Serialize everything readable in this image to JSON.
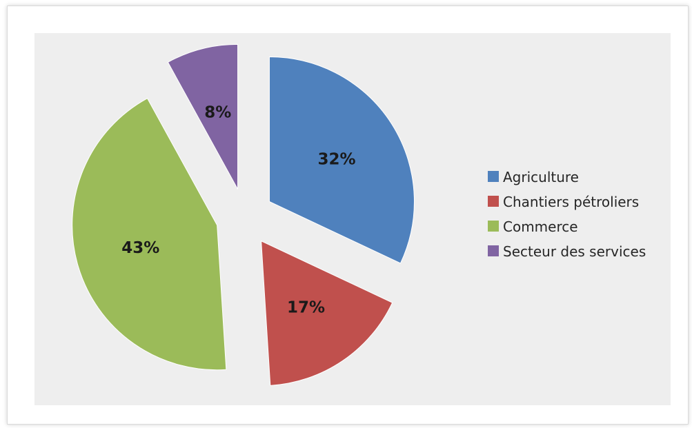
{
  "chart_data": {
    "type": "pie",
    "exploded": true,
    "title": "",
    "categories": [
      "Agriculture",
      "Chantiers pétroliers",
      "Commerce",
      "Secteur des services"
    ],
    "values": [
      32,
      17,
      43,
      8
    ],
    "data_labels": [
      "32%",
      "17%",
      "43%",
      "8%"
    ],
    "colors": [
      "#4f81bd",
      "#c0504d",
      "#9bbb59",
      "#8064a2"
    ],
    "legend_labels": [
      "Agriculture",
      "Chantiers pétroliers",
      "Commerce",
      "Secteur des services"
    ],
    "legend_position": "right",
    "plot_background": "#eeeeee"
  }
}
